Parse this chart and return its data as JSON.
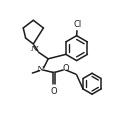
{
  "bg": "#ffffff",
  "lc": "#1c1c1c",
  "lw": 1.1,
  "fs": 6.0,
  "figsize": [
    1.39,
    1.2
  ],
  "dpi": 100,
  "xlim": [
    0,
    1
  ],
  "ylim": [
    0,
    1
  ]
}
